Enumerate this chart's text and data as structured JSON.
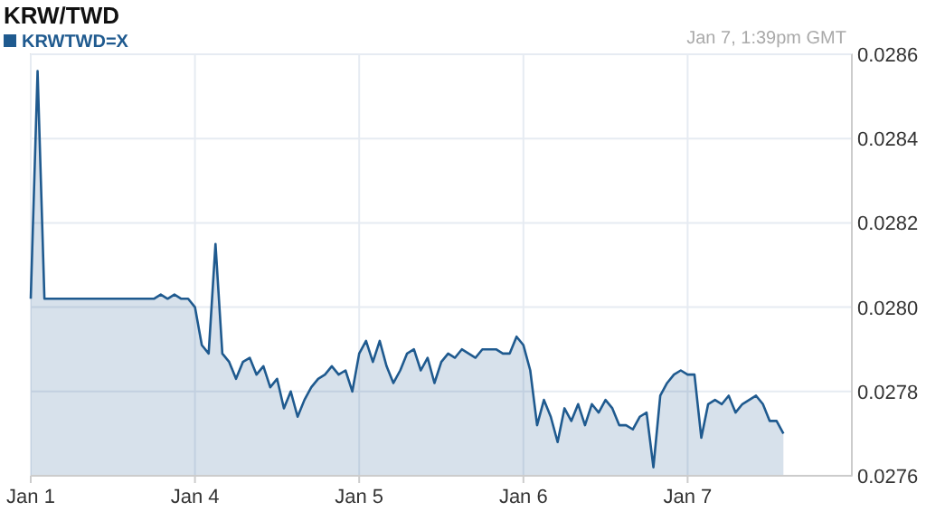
{
  "chart_data": {
    "type": "area",
    "title": "KRW/TWD",
    "annotations": [
      "Jan 7, 1:39pm GMT"
    ],
    "legend": "top left",
    "grid": true,
    "categories": [
      "Jan 1",
      null,
      null,
      null,
      null,
      null,
      null,
      null,
      null,
      null,
      null,
      null,
      null,
      null,
      null,
      null,
      null,
      null,
      null,
      null,
      null,
      null,
      null,
      null,
      "Jan 4",
      null,
      null,
      null,
      null,
      null,
      null,
      null,
      null,
      null,
      null,
      null,
      null,
      null,
      null,
      null,
      null,
      null,
      null,
      null,
      null,
      null,
      null,
      null,
      "Jan 5",
      null,
      null,
      null,
      null,
      null,
      null,
      null,
      null,
      null,
      null,
      null,
      null,
      null,
      null,
      null,
      null,
      null,
      null,
      null,
      null,
      null,
      null,
      null,
      "Jan 6",
      null,
      null,
      null,
      null,
      null,
      null,
      null,
      null,
      null,
      null,
      null,
      null,
      null,
      null,
      null,
      null,
      null,
      null,
      null,
      null,
      null,
      null,
      null,
      "Jan 7",
      null,
      null,
      null,
      null,
      null,
      null,
      null,
      null,
      null,
      null,
      null,
      null,
      null,
      null,
      null,
      null,
      null,
      null,
      null,
      null,
      null,
      null,
      null
    ],
    "ylim": [
      0.0276,
      0.0286
    ],
    "yticks": [
      {
        "value": 0.0276,
        "label": "0.0276"
      },
      {
        "value": 0.0278,
        "label": "0.0278"
      },
      {
        "value": 0.028,
        "label": "0.0280"
      },
      {
        "value": 0.0282,
        "label": "0.0282"
      },
      {
        "value": 0.0284,
        "label": "0.0284"
      },
      {
        "value": 0.0286,
        "label": "0.0286"
      }
    ],
    "series": [
      {
        "name": "KRWTWD=X",
        "color": "#1f5a8f",
        "values": [
          0.02802,
          0.02856,
          0.02802,
          0.02802,
          0.02802,
          0.02802,
          0.02802,
          0.02802,
          0.02802,
          0.02802,
          0.02802,
          0.02802,
          0.02802,
          0.02802,
          0.02802,
          0.02802,
          0.02802,
          0.02802,
          0.02802,
          0.02803,
          0.02802,
          0.02803,
          0.02802,
          0.02802,
          0.028,
          0.02791,
          0.02789,
          0.02815,
          0.02789,
          0.02787,
          0.02783,
          0.02787,
          0.02788,
          0.02784,
          0.02786,
          0.02781,
          0.02783,
          0.02776,
          0.0278,
          0.02774,
          0.02778,
          0.02781,
          0.02783,
          0.02784,
          0.02786,
          0.02784,
          0.02785,
          0.0278,
          0.02789,
          0.02792,
          0.02787,
          0.02792,
          0.02786,
          0.02782,
          0.02785,
          0.02789,
          0.0279,
          0.02785,
          0.02788,
          0.02782,
          0.02787,
          0.02789,
          0.02788,
          0.0279,
          0.02789,
          0.02788,
          0.0279,
          0.0279,
          0.0279,
          0.02789,
          0.02789,
          0.02793,
          0.02791,
          0.02785,
          0.02772,
          0.02778,
          0.02774,
          0.02768,
          0.02776,
          0.02773,
          0.02777,
          0.02772,
          0.02777,
          0.02775,
          0.02778,
          0.02776,
          0.02772,
          0.02772,
          0.02771,
          0.02774,
          0.02775,
          0.02762,
          0.02779,
          0.02782,
          0.02784,
          0.02785,
          0.02784,
          0.02784,
          0.02769,
          0.02777,
          0.02778,
          0.02777,
          0.02779,
          0.02775,
          0.02777,
          0.02778,
          0.02779,
          0.02777,
          0.02773,
          0.02773,
          0.0277,
          null,
          null,
          null,
          null,
          null,
          null,
          null,
          null,
          null
        ]
      }
    ]
  }
}
